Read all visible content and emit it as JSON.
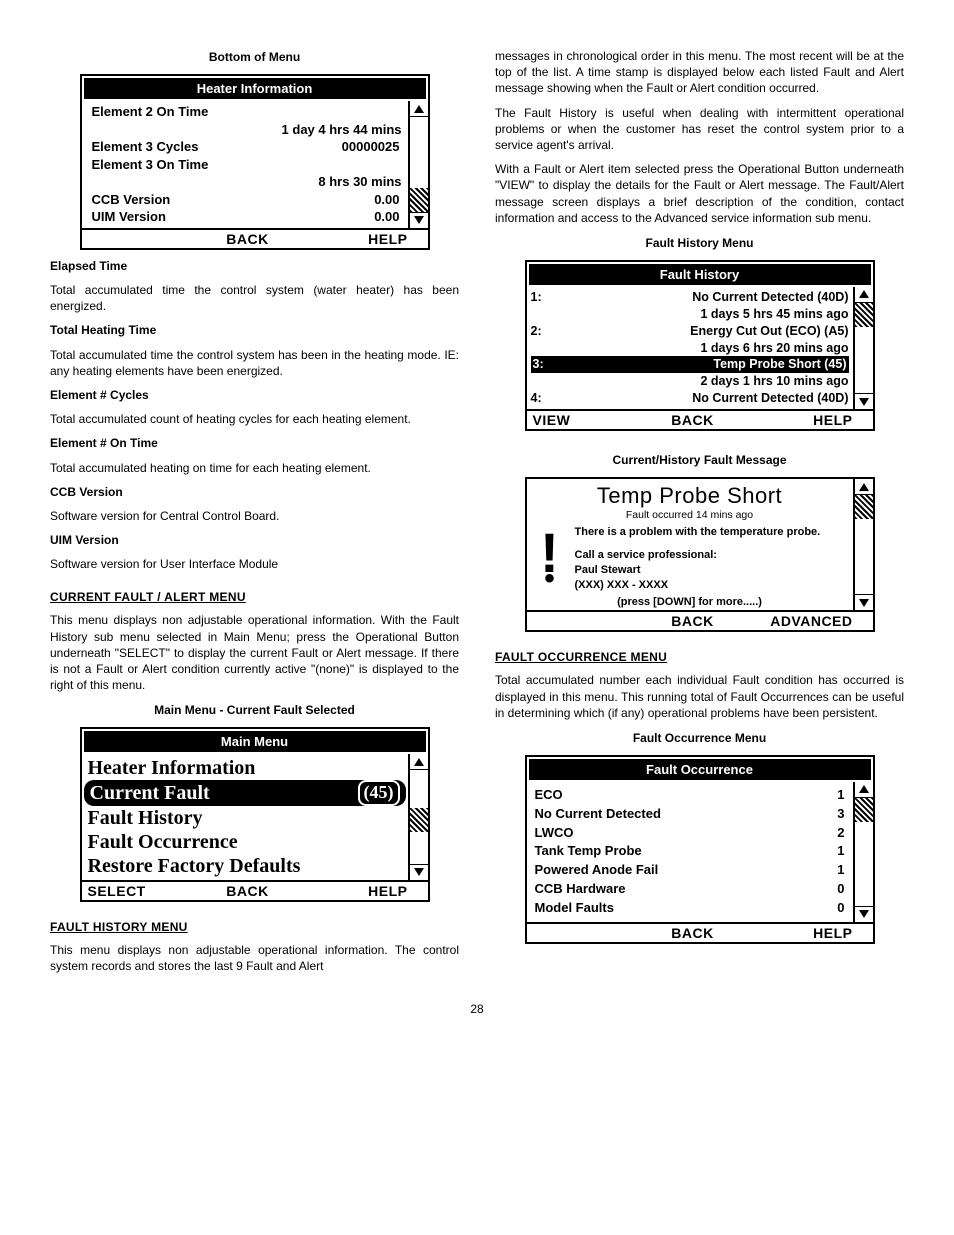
{
  "page_number": "28",
  "left": {
    "bottom_caption": "Bottom of Menu",
    "heater_info": {
      "title": "Heater Information",
      "rows": [
        {
          "label": "Element 2 On Time",
          "value": ""
        },
        {
          "label": "",
          "value": "1 day  4 hrs  44 mins"
        },
        {
          "label": "Element 3 Cycles",
          "value": "00000025"
        },
        {
          "label": "Element 3 On Time",
          "value": ""
        },
        {
          "label": "",
          "value": "8 hrs 30 mins"
        },
        {
          "label": "CCB Version",
          "value": "0.00"
        },
        {
          "label": "UIM Version",
          "value": "0.00"
        }
      ],
      "footer": {
        "left": "",
        "center": "BACK",
        "right": "HELP"
      },
      "scroll_hatch_pos": "bottom"
    },
    "defs": [
      {
        "h": "Elapsed Time",
        "p": "Total accumulated time the control system (water heater) has been energized."
      },
      {
        "h": "Total Heating Time",
        "p": "Total accumulated time the control system has been in the heating mode. IE: any heating elements have been energized."
      },
      {
        "h": "Element # Cycles",
        "p": "Total accumulated count of heating cycles for each heating element."
      },
      {
        "h": "Element # On Time",
        "p": "Total accumulated heating on time for each heating element."
      },
      {
        "h": "CCB Version",
        "p": "Software version for Central Control Board."
      },
      {
        "h": "UIM Version",
        "p": "Software version for User Interface Module"
      }
    ],
    "current_fault_head": "CURRENT FAULT / ALERT MENU",
    "current_fault_para": "This menu displays non adjustable operational information. With the Fault History sub menu selected in Main Menu; press the Operational Button  underneath \"SELECT\" to display the current Fault or Alert message. If there is not a Fault or Alert condition currently active \"(none)\" is displayed to the right of this menu.",
    "main_menu_caption": "Main Menu - Current Fault Selected",
    "main_menu": {
      "title": "Main Menu",
      "items": [
        "Heater Information",
        "Current Fault",
        "Fault History",
        "Fault Occurrence",
        "Restore Factory Defaults"
      ],
      "selected_code": "(45)",
      "footer": {
        "left": "SELECT",
        "center": "BACK",
        "right": "HELP"
      },
      "scroll_hatch_pos": "mid"
    },
    "fault_history_head": "FAULT HISTORY MENU",
    "fault_history_para": "This menu displays non adjustable operational information. The control system records and stores the last 9 Fault and Alert"
  },
  "right": {
    "para1": "messages in chronological order in this menu. The most recent will be at the top of the list. A time stamp is displayed below each listed Fault and Alert message showing when the Fault or Alert condition occurred.",
    "para2": "The Fault History is useful when dealing with intermittent operational problems or when the customer has reset the control system prior to a service agent's arrival.",
    "para3": "With a Fault or Alert item selected press the Operational Button underneath \"VIEW\" to display the details for the Fault or Alert message. The Fault/Alert message screen displays a brief description of the condition, contact information and access to the Advanced service information sub menu.",
    "fh_caption": "Fault History Menu",
    "fault_history": {
      "title": "Fault History",
      "rows": [
        {
          "n": "1:",
          "t": "No Current Detected (40D)",
          "s": "1 days  5 hrs  45 mins ago",
          "sel": false
        },
        {
          "n": "2:",
          "t": "Energy Cut Out (ECO) (A5)",
          "s": "1 days  6 hrs  20 mins ago",
          "sel": false
        },
        {
          "n": "3:",
          "t": "Temp Probe Short (45)",
          "s": "2 days  1 hrs  10 mins ago",
          "sel": true
        },
        {
          "n": "4:",
          "t": "No Current Detected (40D)",
          "s": "",
          "sel": false
        }
      ],
      "footer": {
        "left": "VIEW",
        "center": "BACK",
        "right": "HELP"
      },
      "scroll_hatch_pos": "top"
    },
    "fd_caption": "Current/History Fault Message",
    "fault_detail": {
      "title": "Temp Probe Short",
      "sub": "Fault occurred 14 mins ago",
      "msg1": "There is a problem with the temperature probe.",
      "msg2": "Call a service professional:",
      "name": "Paul Stewart",
      "phone": "(XXX) XXX - XXXX",
      "more": "(press [DOWN] for more.....)",
      "footer": {
        "left": "",
        "center": "BACK",
        "right": "ADVANCED"
      },
      "scroll_hatch_pos": "top"
    },
    "fo_head": "FAULT OCCURRENCE MENU",
    "fo_para": "Total accumulated number each individual Fault condition has occurred is displayed in this menu. This running total of Fault Occurrences can be useful in determining which (if any) operational problems have been persistent.",
    "fo_caption": "Fault Occurrence Menu",
    "fault_occurrence": {
      "title": "Fault Occurrence",
      "rows": [
        {
          "l": "ECO",
          "v": "1"
        },
        {
          "l": "No Current Detected",
          "v": "3"
        },
        {
          "l": "LWCO",
          "v": "2"
        },
        {
          "l": "Tank Temp Probe",
          "v": "1"
        },
        {
          "l": "Powered Anode Fail",
          "v": "1"
        },
        {
          "l": "CCB Hardware",
          "v": "0"
        },
        {
          "l": "Model Faults",
          "v": "0"
        }
      ],
      "footer": {
        "left": "",
        "center": "BACK",
        "right": "HELP"
      },
      "scroll_hatch_pos": "top"
    }
  }
}
